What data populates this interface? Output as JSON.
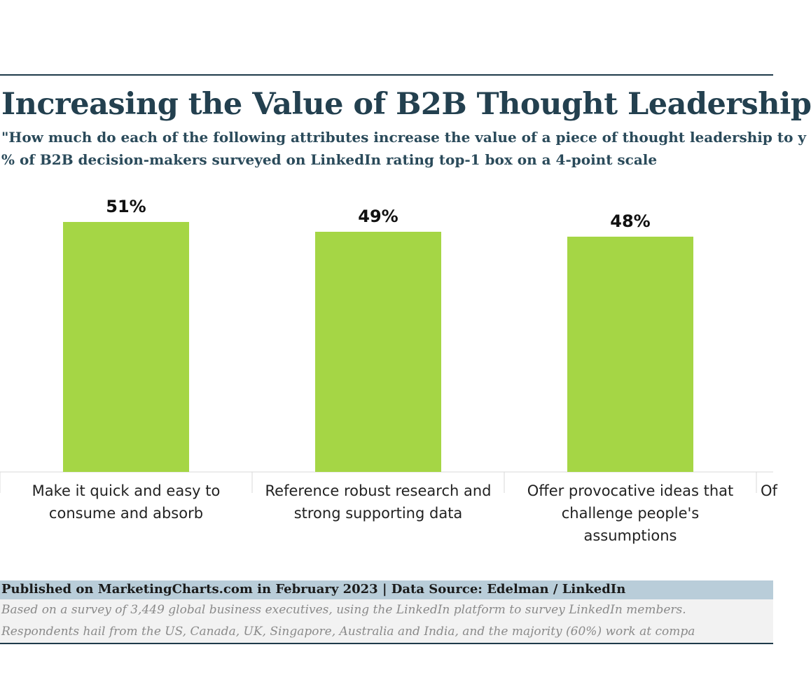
{
  "title": "Increasing the Value of B2B Thought Leadership",
  "subtitle_question": "\"How much do each of the following attributes increase the value of a piece of thought leadership to y",
  "subtitle_metric": "% of B2B decision-makers surveyed on LinkedIn rating top-1 box on a 4-point scale",
  "colors": {
    "bar": "#a5d645",
    "title": "#23404f",
    "footer_bar": "#b9cdd9"
  },
  "chart_data": {
    "type": "bar",
    "title": "Increasing the Value of B2B Thought Leadership",
    "ylabel": "% of B2B decision-makers surveyed on LinkedIn rating top-1 box on a 4-point scale",
    "xlabel": "",
    "ylim": [
      0,
      55
    ],
    "grid": false,
    "categories": [
      [
        "Make it quick and easy to",
        "consume and absorb"
      ],
      [
        "Reference robust research and",
        "strong supporting data"
      ],
      [
        "Offer provocative ideas that",
        "challenge people's",
        "assumptions"
      ],
      [
        "Of"
      ]
    ],
    "values": [
      51,
      49,
      48,
      null
    ],
    "data_labels": [
      "51%",
      "49%",
      "48%",
      ""
    ]
  },
  "footer": {
    "published": "Published on MarketingCharts.com in February 2023 | Data Source: Edelman / LinkedIn",
    "note_1": "Based on a survey of 3,449 global business executives, using the LinkedIn platform to survey LinkedIn members.",
    "note_2": "Respondents hail from the US, Canada, UK, Singapore, Australia and India, and the majority (60%) work at compa"
  }
}
